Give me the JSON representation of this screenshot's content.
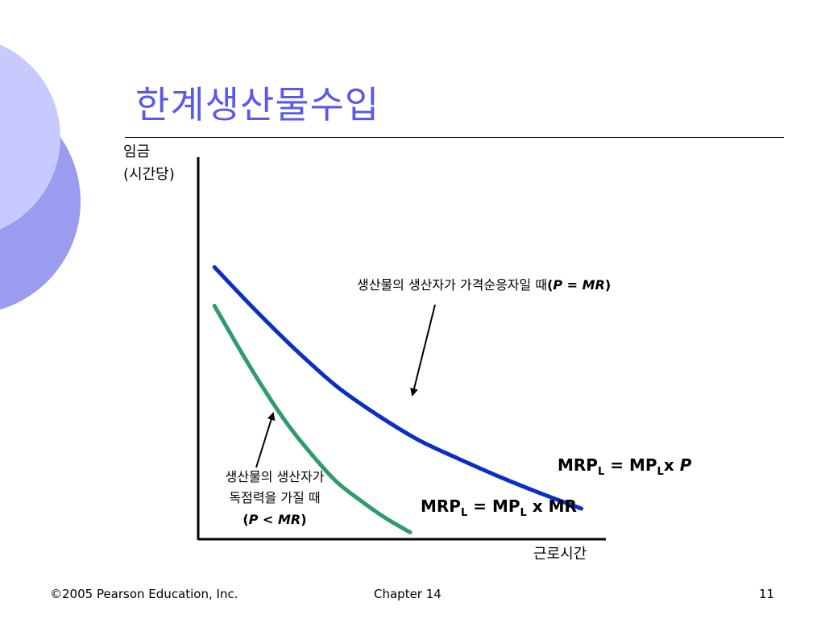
{
  "slide": {
    "title": "한계생산물수입",
    "footer": {
      "copyright": "©2005 Pearson Education, Inc.",
      "chapter": "Chapter 14",
      "page": "11"
    },
    "colors": {
      "title": "#5a5ae6",
      "deco_light": "#c8caff",
      "deco_dark": "#9a9cf0"
    }
  },
  "chart_data": {
    "type": "line",
    "ylabel_line1": "임금",
    "ylabel_line2": "(시간당)",
    "xlabel": "근로시간",
    "grid": false,
    "xlim": [
      0,
      10
    ],
    "ylim": [
      0,
      10
    ],
    "series": [
      {
        "label_main": "MRP",
        "label_sub": "L",
        "label_eq": " = MP",
        "label_sub2": "L",
        "label_x": "x ",
        "label_p": "P",
        "color": "#0a2fc8",
        "x": [
          0.4,
          1.4,
          2.4,
          3.4,
          4.4,
          5.4,
          6.4,
          7.4,
          8.4,
          9.4
        ],
        "y": [
          7.12,
          6.0,
          4.95,
          4.0,
          3.25,
          2.6,
          2.1,
          1.63,
          1.2,
          0.8
        ]
      },
      {
        "label_main": "MRP",
        "label_sub": "L",
        "label_eq": " = MP",
        "label_sub2": "L",
        "label_x": " x MR",
        "color": "#2e9b6b",
        "x": [
          0.4,
          1.0,
          1.6,
          2.2,
          2.8,
          3.4,
          4.0,
          4.6,
          5.2
        ],
        "y": [
          6.11,
          5.0,
          3.95,
          3.0,
          2.2,
          1.5,
          1.0,
          0.55,
          0.18
        ]
      }
    ],
    "annotations": [
      {
        "text": "생산물의 생산자가 가격순응자일 때",
        "text_paren": "(",
        "text_italic": "P = MR",
        "text_close": ")"
      },
      {
        "line1": "생산물의 생산자가",
        "line2": "독점력을 가질 때",
        "line3_open": "(",
        "line3_italic": "P < MR",
        "line3_close": ")"
      }
    ]
  }
}
